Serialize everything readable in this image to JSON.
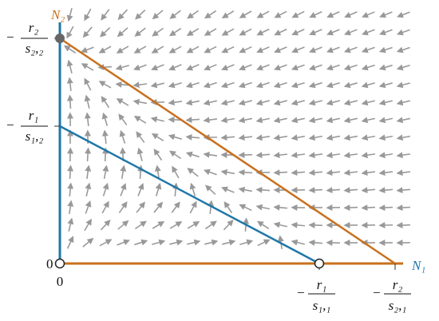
{
  "axes": {
    "x_label": "N₁",
    "y_label": "N₂"
  },
  "y_ticks": [
    {
      "sign": "−",
      "numerator": "r₂",
      "denominator": "s₂,₂"
    },
    {
      "sign": "−",
      "numerator": "r₁",
      "denominator": "s₁,₂"
    },
    {
      "label": "0"
    }
  ],
  "x_ticks": [
    {
      "label": "0"
    },
    {
      "sign": "−",
      "numerator": "r₁",
      "denominator": "s₁,₁"
    },
    {
      "sign": "−",
      "numerator": "r₂",
      "denominator": "s₂,₁"
    }
  ]
}
